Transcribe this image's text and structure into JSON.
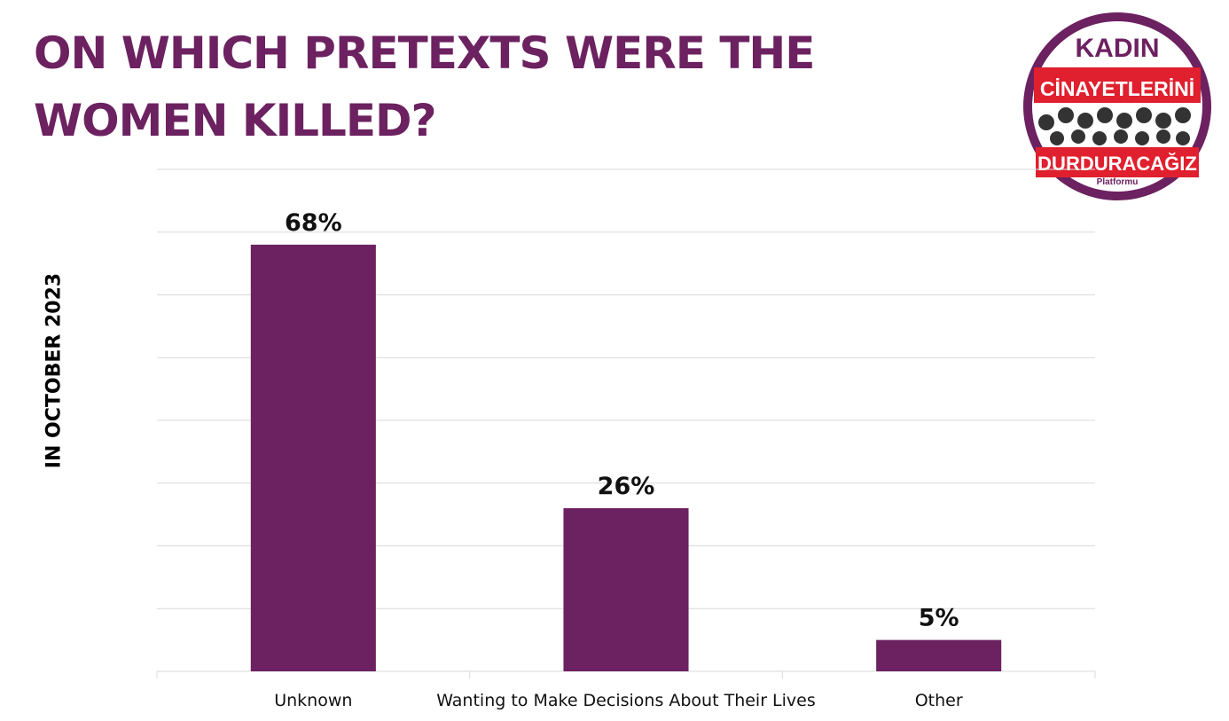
{
  "title": "ON WHICH PRETEXTS WERE THE WOMEN KILLED?",
  "side_label": "IN OCTOBER 2023",
  "logo": {
    "line1": "KADIN",
    "line2": "CİNAYETLERİNİ",
    "line3": "DURDURACAĞIZ",
    "line4": "Platformu"
  },
  "colors": {
    "bar": "#6c2160",
    "title": "#6c2160",
    "logo_ring": "#6c2160",
    "logo_red": "#e0202e",
    "grid": "#d9d9d9"
  },
  "chart_data": {
    "type": "bar",
    "categories": [
      "Unknown",
      "Wanting to Make Decisions About Their Lives",
      "Other"
    ],
    "values": [
      68,
      26,
      5
    ],
    "data_labels": [
      "68%",
      "26%",
      "5%"
    ],
    "ylim": [
      0,
      80
    ],
    "grid": true,
    "xlabel": "",
    "ylabel": ""
  }
}
